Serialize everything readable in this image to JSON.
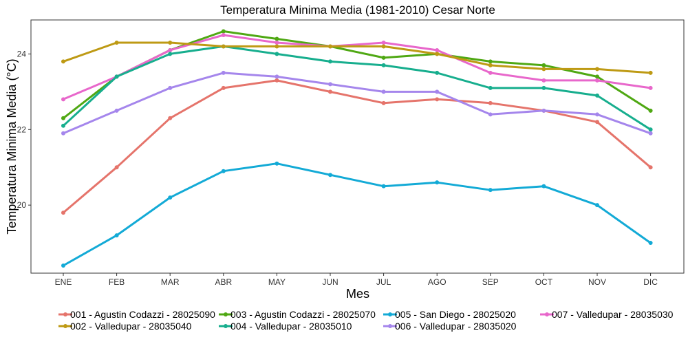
{
  "chart_data": {
    "type": "line",
    "title": "Temperatura Minima Media (1981-2010)  Cesar Norte",
    "xlabel": "Mes",
    "ylabel": "Temperatura Minima Media  (°C)",
    "categories": [
      "ENE",
      "FEB",
      "MAR",
      "ABR",
      "MAY",
      "JUN",
      "JUL",
      "AGO",
      "SEP",
      "OCT",
      "NOV",
      "DIC"
    ],
    "ylim": [
      18.2,
      24.9
    ],
    "yticks": [
      20,
      22,
      24
    ],
    "grid": false,
    "legend_position": "bottom",
    "series": [
      {
        "name": "001 - Agustin Codazzi - 28025090",
        "color": "#E5746B",
        "values": [
          19.8,
          21.0,
          22.3,
          23.1,
          23.3,
          23.0,
          22.7,
          22.8,
          22.7,
          22.5,
          22.2,
          21.0
        ]
      },
      {
        "name": "002 - Valledupar - 28035040",
        "color": "#BE9A14",
        "values": [
          23.8,
          24.3,
          24.3,
          24.2,
          24.2,
          24.2,
          24.2,
          24.0,
          23.7,
          23.6,
          23.6,
          23.5
        ]
      },
      {
        "name": "003 - Agustin Codazzi - 28025070",
        "color": "#4FA813",
        "values": [
          22.3,
          23.4,
          24.1,
          24.6,
          24.4,
          24.2,
          23.9,
          24.0,
          23.8,
          23.7,
          23.4,
          22.5
        ]
      },
      {
        "name": "004 - Valledupar - 28035010",
        "color": "#17AE8E",
        "values": [
          22.1,
          23.4,
          24.0,
          24.2,
          24.0,
          23.8,
          23.7,
          23.5,
          23.1,
          23.1,
          22.9,
          22.0
        ]
      },
      {
        "name": "005 - San Diego - 28025020",
        "color": "#13AAD6",
        "values": [
          18.4,
          19.2,
          20.2,
          20.9,
          21.1,
          20.8,
          20.5,
          20.6,
          20.4,
          20.5,
          20.0,
          19.0
        ]
      },
      {
        "name": "006 - Valledupar - 28035020",
        "color": "#A586EC",
        "values": [
          21.9,
          22.5,
          23.1,
          23.5,
          23.4,
          23.2,
          23.0,
          23.0,
          22.4,
          22.5,
          22.4,
          21.9
        ]
      },
      {
        "name": "007 - Valledupar - 28035030",
        "color": "#E867CB",
        "values": [
          22.8,
          23.4,
          24.1,
          24.5,
          24.3,
          24.2,
          24.3,
          24.1,
          23.5,
          23.3,
          23.3,
          23.1
        ]
      }
    ],
    "draw_order": [
      0,
      2,
      4,
      6,
      3,
      5,
      1
    ]
  }
}
